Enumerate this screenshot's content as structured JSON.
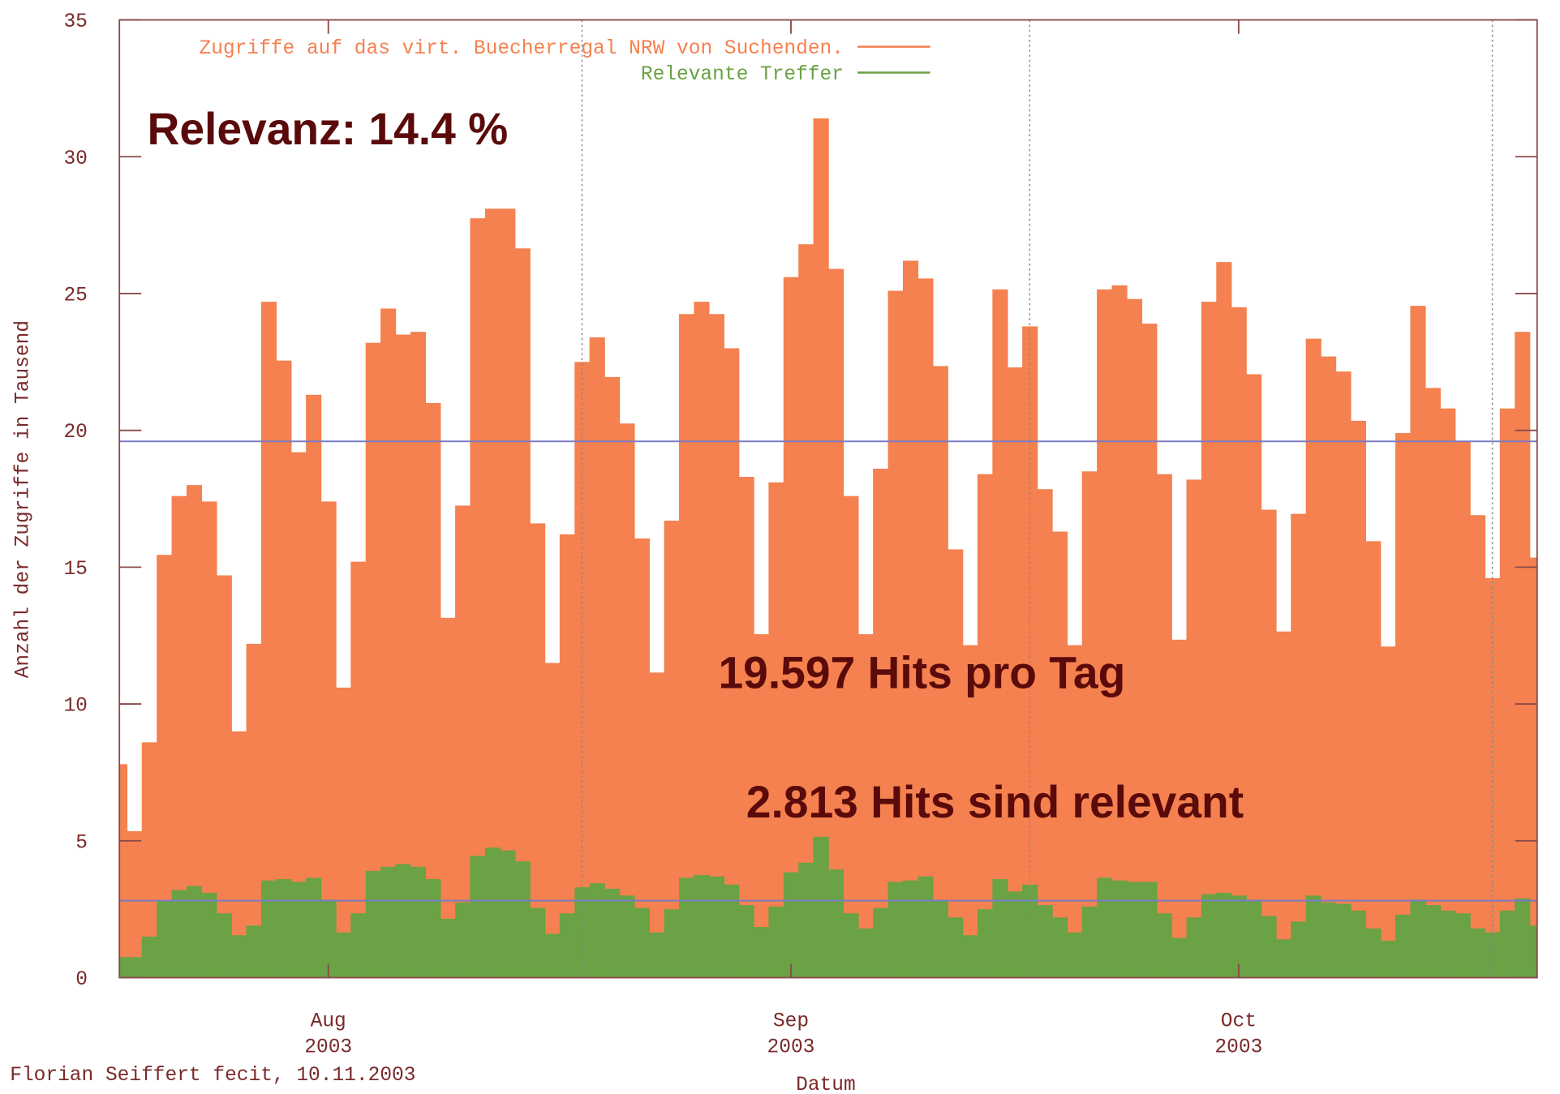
{
  "chart_data": {
    "type": "bar",
    "y_label": "Anzahl der Zugriffe in Tausend",
    "x_label": "Datum",
    "footer": "Florian Seiffert fecit, 10.11.2003",
    "annotations": [
      "Relevanz: 14.4 %",
      "19.597 Hits pro Tag",
      "2.813 Hits sind relevant"
    ],
    "xlim": [
      0,
      95
    ],
    "xticks": [
      {
        "value": 14,
        "label": [
          "Aug",
          "2003"
        ]
      },
      {
        "value": 45,
        "label": [
          "Sep",
          "2003"
        ]
      },
      {
        "value": 75,
        "label": [
          "Oct",
          "2003"
        ]
      }
    ],
    "vlines": [
      31,
      61,
      92
    ],
    "ylim": [
      0,
      35
    ],
    "yticks": [
      0,
      5,
      10,
      15,
      20,
      25,
      30,
      35
    ],
    "hlines": [
      19.597,
      2.813
    ],
    "hline_color": "#7b7bc4",
    "legend": "top-center",
    "series": [
      {
        "name": "Zugriffe auf das virt. Buecherregal NRW von Suchenden.",
        "color": "#f4814f",
        "values": [
          7.8,
          5.35,
          8.6,
          15.45,
          17.6,
          18.0,
          17.4,
          14.7,
          9.0,
          12.2,
          24.7,
          22.55,
          19.2,
          21.3,
          17.4,
          10.6,
          15.2,
          23.2,
          24.45,
          23.5,
          23.6,
          21.0,
          13.15,
          17.25,
          27.75,
          28.1,
          28.1,
          26.65,
          16.6,
          11.5,
          16.2,
          22.5,
          23.4,
          21.95,
          20.25,
          16.05,
          11.15,
          16.7,
          24.25,
          24.7,
          24.25,
          23.0,
          18.3,
          12.55,
          18.1,
          25.6,
          26.8,
          31.4,
          25.9,
          17.6,
          12.55,
          18.6,
          25.1,
          26.2,
          25.55,
          22.35,
          15.65,
          12.15,
          18.4,
          25.15,
          22.3,
          23.8,
          17.85,
          16.3,
          12.15,
          18.5,
          25.15,
          25.3,
          24.8,
          23.9,
          18.4,
          12.35,
          18.2,
          24.7,
          26.15,
          24.5,
          22.05,
          17.1,
          12.65,
          16.95,
          23.35,
          22.7,
          22.15,
          20.35,
          15.95,
          12.1,
          19.9,
          24.55,
          21.55,
          20.8,
          19.6,
          16.9,
          14.6,
          20.8,
          23.6,
          15.35
        ]
      },
      {
        "name": "Relevante Treffer",
        "color": "#6aa245",
        "values": [
          0.75,
          0.75,
          1.5,
          2.8,
          3.2,
          3.35,
          3.1,
          2.35,
          1.55,
          1.9,
          3.55,
          3.6,
          3.5,
          3.65,
          2.85,
          1.65,
          2.35,
          3.9,
          4.05,
          4.15,
          4.05,
          3.6,
          2.15,
          2.75,
          4.45,
          4.75,
          4.65,
          4.25,
          2.55,
          1.6,
          2.35,
          3.3,
          3.45,
          3.25,
          3.0,
          2.55,
          1.65,
          2.5,
          3.65,
          3.75,
          3.7,
          3.4,
          2.65,
          1.85,
          2.6,
          3.85,
          4.2,
          5.15,
          3.95,
          2.35,
          1.8,
          2.55,
          3.5,
          3.55,
          3.7,
          2.85,
          2.2,
          1.55,
          2.5,
          3.6,
          3.15,
          3.4,
          2.65,
          2.2,
          1.65,
          2.6,
          3.65,
          3.55,
          3.5,
          3.5,
          2.35,
          1.45,
          2.2,
          3.05,
          3.1,
          3.0,
          2.85,
          2.25,
          1.4,
          2.05,
          3.0,
          2.75,
          2.7,
          2.45,
          1.8,
          1.35,
          2.3,
          2.85,
          2.65,
          2.45,
          2.35,
          1.8,
          1.65,
          2.45,
          2.9,
          1.9
        ]
      }
    ]
  }
}
